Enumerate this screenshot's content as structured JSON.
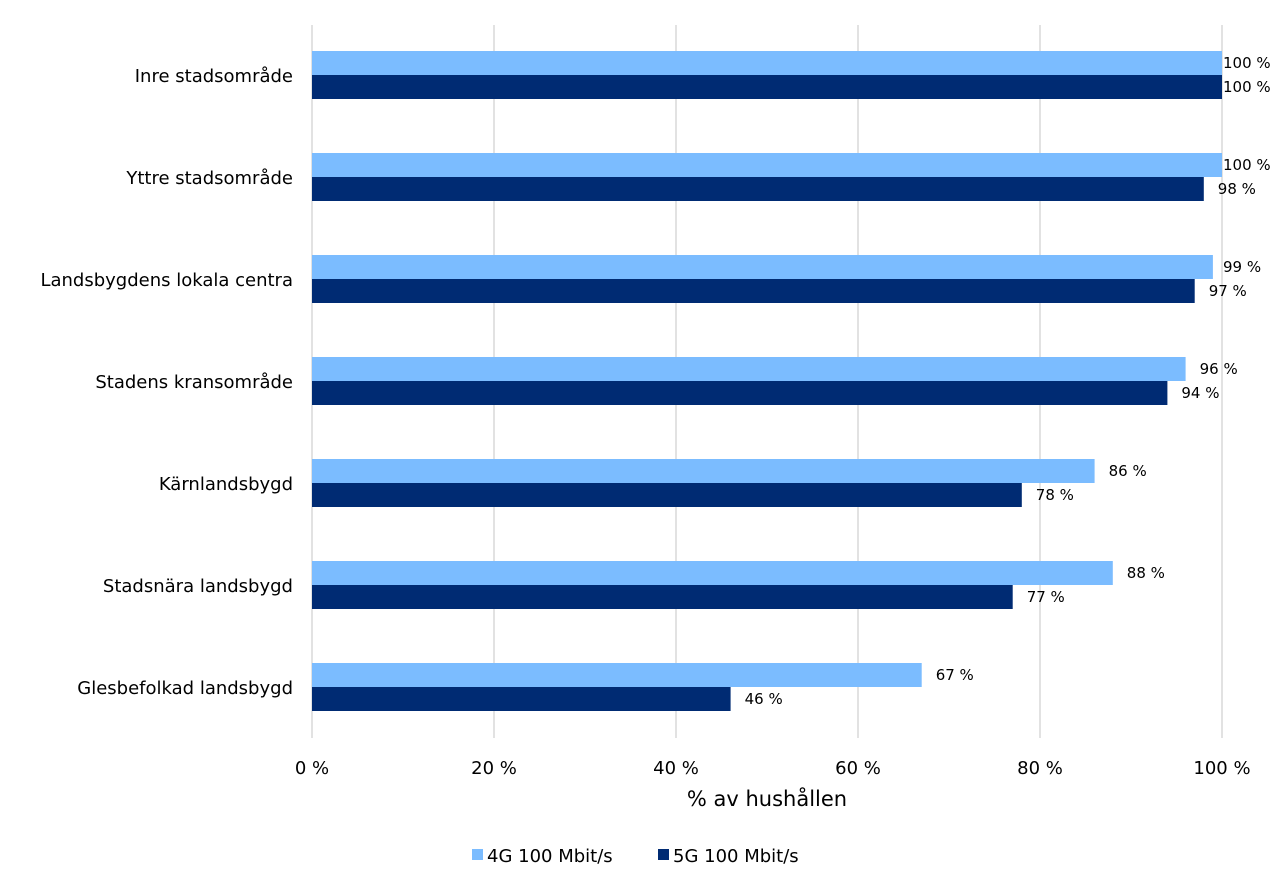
{
  "chart_data": {
    "type": "bar",
    "orientation": "horizontal",
    "categories": [
      "Inre stadsområde",
      "Yttre stadsområde",
      "Landsbygdens lokala centra",
      "Stadens kransområde",
      "Kärnlandsbygd",
      "Stadsnära landsbygd",
      "Glesbefolkad landsbygd"
    ],
    "series": [
      {
        "name": "4G 100 Mbit/s",
        "color": "#7BBCFF",
        "values": [
          100,
          100,
          99,
          96,
          86,
          88,
          67
        ]
      },
      {
        "name": "5G 100 Mbit/s",
        "color": "#002B73",
        "values": [
          100,
          98,
          97,
          94,
          78,
          77,
          46
        ]
      }
    ],
    "data_label_suffix": " %",
    "xlabel": "% av hushållen",
    "ylabel": "",
    "xlim": [
      0,
      100
    ],
    "xticks": [
      0,
      20,
      40,
      60,
      80,
      100
    ],
    "xtick_labels": [
      "0 %",
      "20 %",
      "40 %",
      "60 %",
      "80 %",
      "100 %"
    ],
    "grid": "vertical",
    "grid_color": "#D9D9D9",
    "legend": "bottom"
  }
}
